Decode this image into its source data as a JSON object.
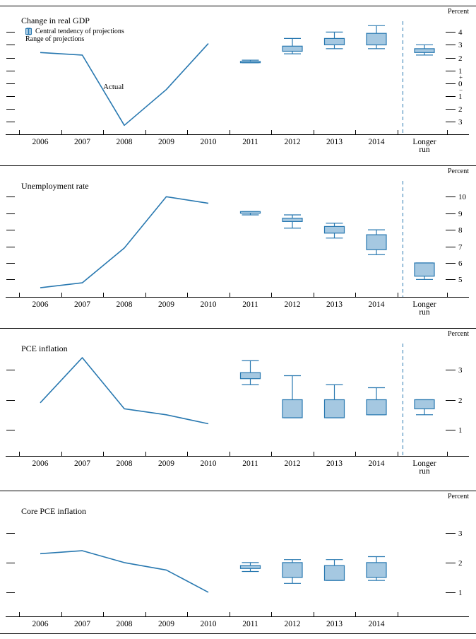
{
  "figure": {
    "actual_label": "Actual",
    "legend": {
      "central_tendency_label": "Central tendency of projections",
      "range_label": "Range of projections"
    },
    "colors": {
      "accent": "#2878b0",
      "box_fill": "#a5c8e1",
      "axis": "#000000"
    }
  },
  "chart_data": [
    {
      "type": "line+boxplot",
      "title": "Change in real GDP",
      "unit_label": "Percent",
      "categories": [
        "2006",
        "2007",
        "2008",
        "2009",
        "2010",
        "2011",
        "2012",
        "2013",
        "2014"
      ],
      "has_longer_run": true,
      "longer_run_label": [
        "Longer",
        "run"
      ],
      "legend_position": "top-left",
      "actual": {
        "name": "Actual",
        "x": [
          2006,
          2007,
          2008,
          2009,
          2010
        ],
        "values": [
          2.4,
          2.2,
          -3.3,
          -0.5,
          3.1
        ]
      },
      "projections": [
        {
          "x": "2011",
          "central_tendency": [
            1.6,
            1.7
          ],
          "range": [
            1.6,
            1.8
          ]
        },
        {
          "x": "2012",
          "central_tendency": [
            2.5,
            2.9
          ],
          "range": [
            2.3,
            3.5
          ]
        },
        {
          "x": "2013",
          "central_tendency": [
            3.0,
            3.5
          ],
          "range": [
            2.7,
            4.0
          ]
        },
        {
          "x": "2014",
          "central_tendency": [
            3.0,
            3.9
          ],
          "range": [
            2.7,
            4.5
          ]
        },
        {
          "x": "longer_run",
          "central_tendency": [
            2.4,
            2.7
          ],
          "range": [
            2.2,
            3.0
          ]
        }
      ],
      "yticks": [
        {
          "v": 4,
          "label": "4"
        },
        {
          "v": 3,
          "label": "3"
        },
        {
          "v": 2,
          "label": "2"
        },
        {
          "v": 1,
          "label": "1"
        },
        {
          "v": 0.5,
          "label": "+",
          "dash": false
        },
        {
          "v": 0,
          "label": "0"
        },
        {
          "v": -0.5,
          "label": "−",
          "dash": false
        },
        {
          "v": -1,
          "label": "1"
        },
        {
          "v": -2,
          "label": "2"
        },
        {
          "v": -3,
          "label": "3"
        }
      ],
      "ylim": [
        -4.0,
        4.85
      ],
      "grid": false
    },
    {
      "type": "line+boxplot",
      "title": "Unemployment rate",
      "unit_label": "Percent",
      "categories": [
        "2006",
        "2007",
        "2008",
        "2009",
        "2010",
        "2011",
        "2012",
        "2013",
        "2014"
      ],
      "has_longer_run": true,
      "longer_run_label": [
        "Longer",
        "run"
      ],
      "actual": {
        "name": "Actual",
        "x": [
          2006,
          2007,
          2008,
          2009,
          2010
        ],
        "values": [
          4.5,
          4.8,
          6.9,
          10.0,
          9.6
        ]
      },
      "projections": [
        {
          "x": "2011",
          "central_tendency": [
            9.0,
            9.1
          ],
          "range": [
            8.9,
            9.1
          ]
        },
        {
          "x": "2012",
          "central_tendency": [
            8.5,
            8.7
          ],
          "range": [
            8.1,
            8.9
          ]
        },
        {
          "x": "2013",
          "central_tendency": [
            7.8,
            8.2
          ],
          "range": [
            7.5,
            8.4
          ]
        },
        {
          "x": "2014",
          "central_tendency": [
            6.8,
            7.7
          ],
          "range": [
            6.5,
            8.0
          ]
        },
        {
          "x": "longer_run",
          "central_tendency": [
            5.2,
            6.0
          ],
          "range": [
            5.0,
            6.0
          ]
        }
      ],
      "yticks": [
        {
          "v": 10,
          "label": "10"
        },
        {
          "v": 9,
          "label": "9"
        },
        {
          "v": 8,
          "label": "8"
        },
        {
          "v": 7,
          "label": "7"
        },
        {
          "v": 6,
          "label": "6"
        },
        {
          "v": 5,
          "label": "5"
        }
      ],
      "ylim": [
        3.95,
        10.95
      ],
      "grid": false
    },
    {
      "type": "line+boxplot",
      "title": "PCE inflation",
      "unit_label": "Percent",
      "categories": [
        "2006",
        "2007",
        "2008",
        "2009",
        "2010",
        "2011",
        "2012",
        "2013",
        "2014"
      ],
      "has_longer_run": true,
      "longer_run_label": [
        "Longer",
        "run"
      ],
      "actual": {
        "name": "Actual",
        "x": [
          2006,
          2007,
          2008,
          2009,
          2010
        ],
        "values": [
          1.9,
          3.4,
          1.7,
          1.5,
          1.2
        ]
      },
      "projections": [
        {
          "x": "2011",
          "central_tendency": [
            2.7,
            2.9
          ],
          "range": [
            2.5,
            3.3
          ]
        },
        {
          "x": "2012",
          "central_tendency": [
            1.4,
            2.0
          ],
          "range": [
            1.4,
            2.8
          ]
        },
        {
          "x": "2013",
          "central_tendency": [
            1.4,
            2.0
          ],
          "range": [
            1.4,
            2.5
          ]
        },
        {
          "x": "2014",
          "central_tendency": [
            1.5,
            2.0
          ],
          "range": [
            1.5,
            2.4
          ]
        },
        {
          "x": "longer_run",
          "central_tendency": [
            1.7,
            2.0
          ],
          "range": [
            1.5,
            2.0
          ]
        }
      ],
      "yticks": [
        {
          "v": 3,
          "label": "3"
        },
        {
          "v": 2,
          "label": "2"
        },
        {
          "v": 1,
          "label": "1"
        }
      ],
      "ylim": [
        0.13,
        3.87
      ],
      "grid": false
    },
    {
      "type": "line+boxplot",
      "title": "Core PCE inflation",
      "unit_label": "Percent",
      "categories": [
        "2006",
        "2007",
        "2008",
        "2009",
        "2010",
        "2011",
        "2012",
        "2013",
        "2014"
      ],
      "has_longer_run": false,
      "actual": {
        "name": "Actual",
        "x": [
          2006,
          2007,
          2008,
          2009,
          2010
        ],
        "values": [
          2.3,
          2.4,
          2.0,
          1.75,
          1.0
        ]
      },
      "projections": [
        {
          "x": "2011",
          "central_tendency": [
            1.8,
            1.9
          ],
          "range": [
            1.7,
            2.0
          ]
        },
        {
          "x": "2012",
          "central_tendency": [
            1.5,
            2.0
          ],
          "range": [
            1.3,
            2.1
          ]
        },
        {
          "x": "2013",
          "central_tendency": [
            1.4,
            1.9
          ],
          "range": [
            1.4,
            2.1
          ]
        },
        {
          "x": "2014",
          "central_tendency": [
            1.5,
            2.0
          ],
          "range": [
            1.4,
            2.2
          ]
        }
      ],
      "yticks": [
        {
          "v": 3,
          "label": "3"
        },
        {
          "v": 2,
          "label": "2"
        },
        {
          "v": 1,
          "label": "1"
        }
      ],
      "ylim": [
        0.19,
        3.9
      ],
      "grid": false
    }
  ]
}
